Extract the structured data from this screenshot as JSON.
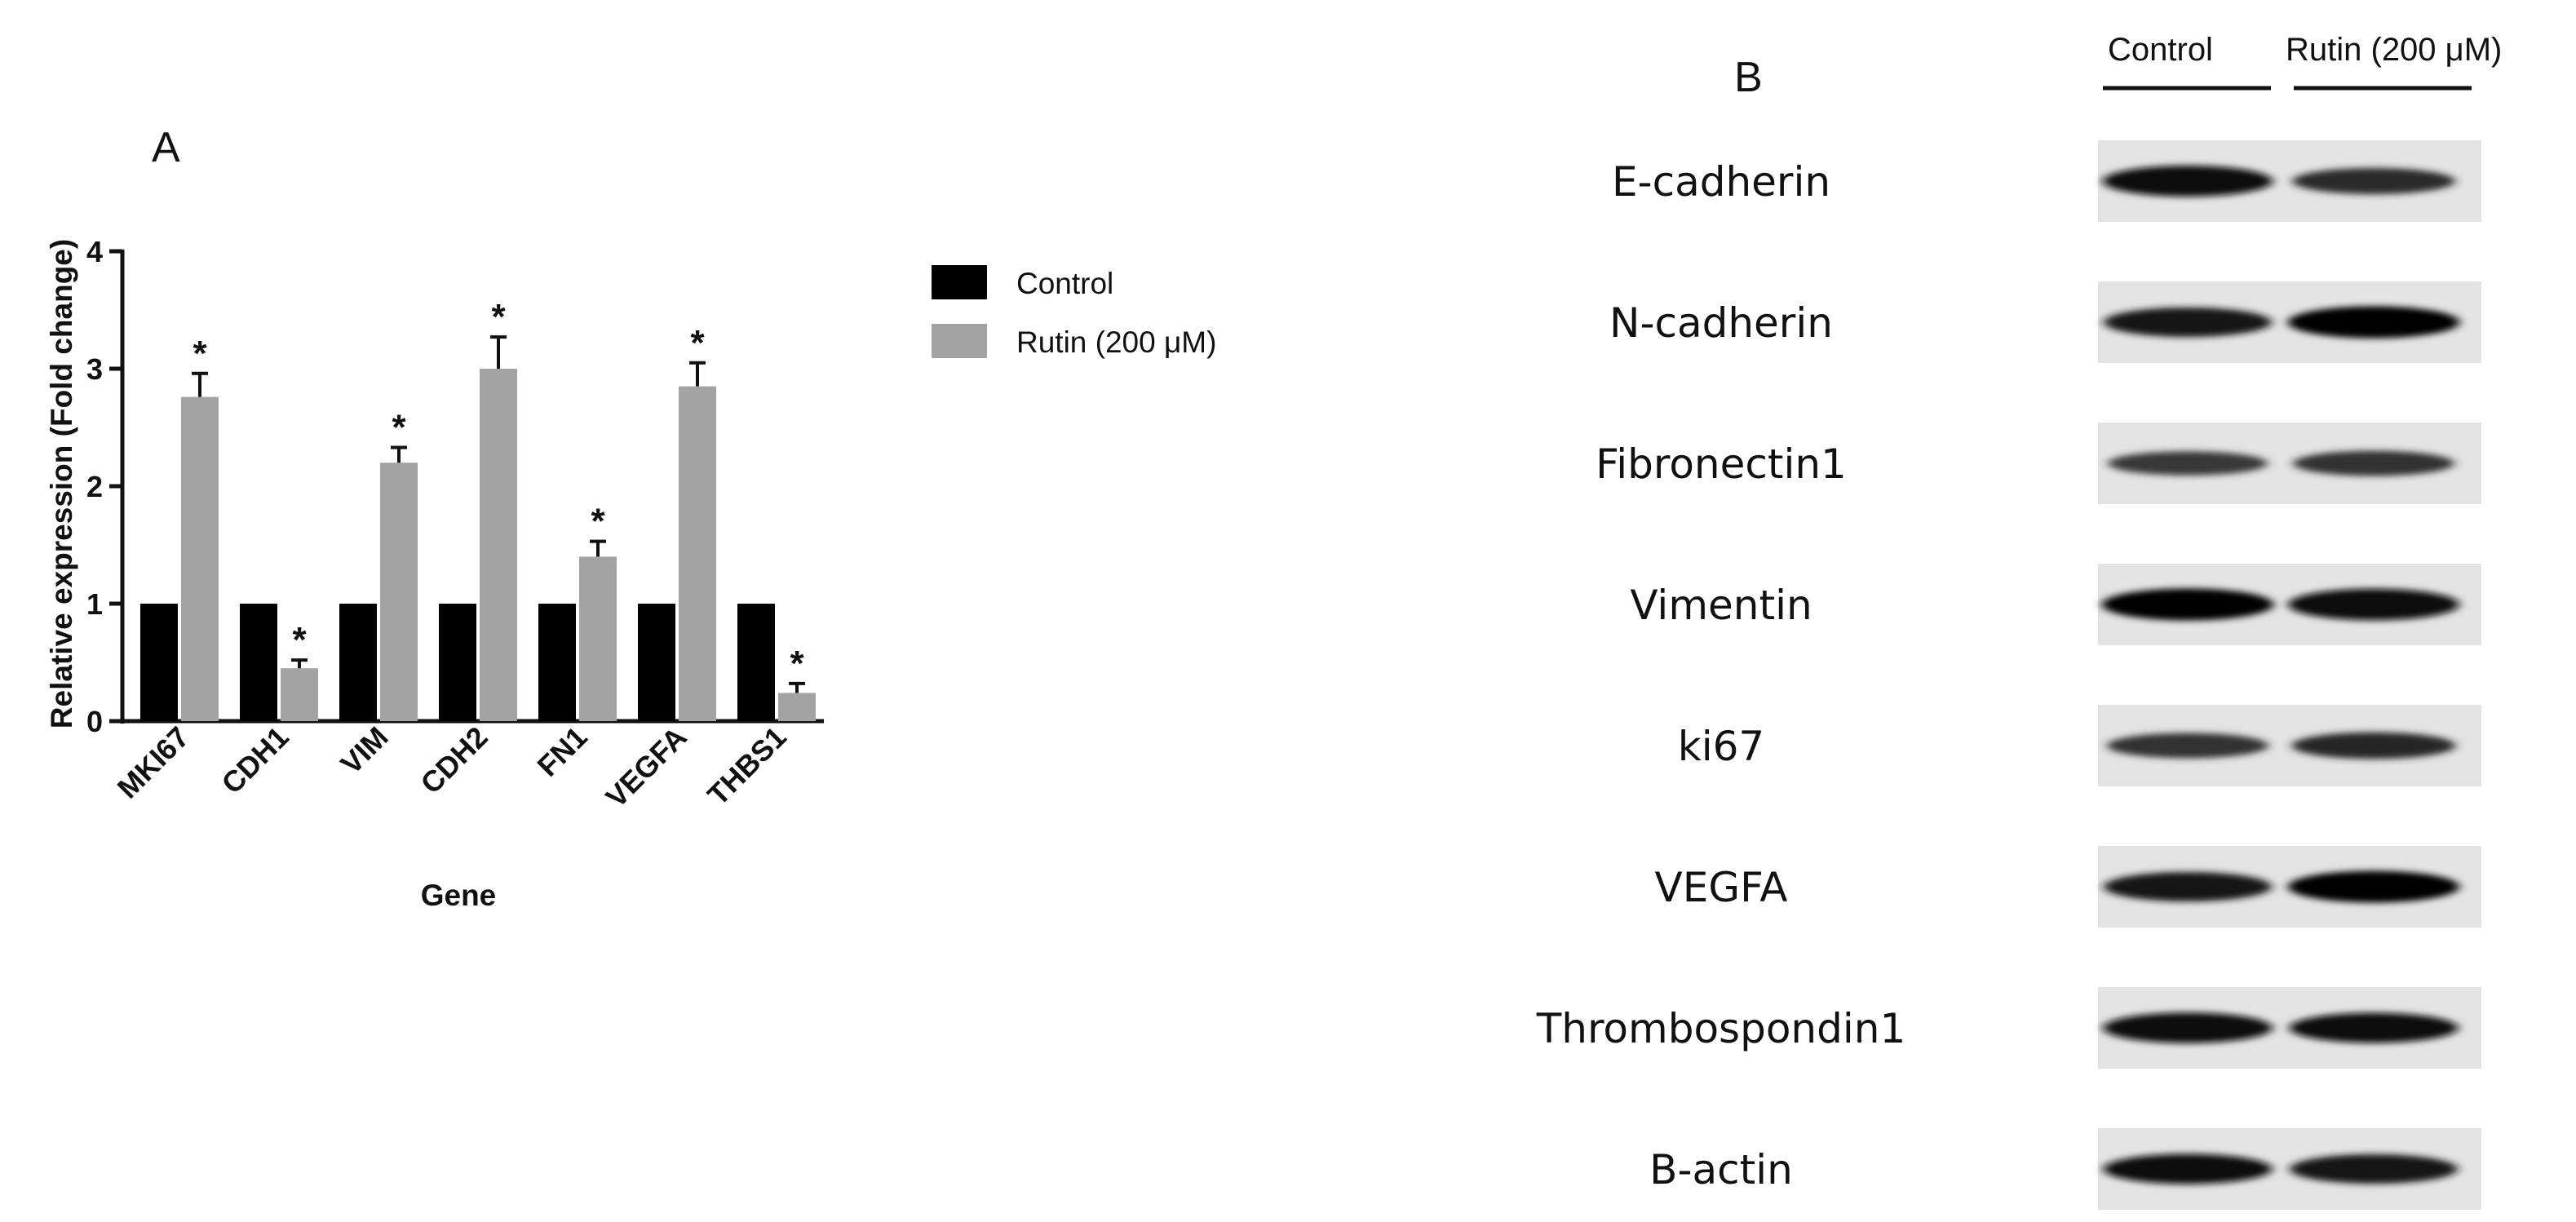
{
  "panel_a": {
    "letter": "A",
    "star": "*",
    "chart_data": {
      "type": "bar",
      "xlabel": "Gene",
      "ylabel": "Relative expression (Fold change)",
      "ylim": [
        0,
        4
      ],
      "yticks": [
        "0",
        "1",
        "2",
        "3",
        "4"
      ],
      "categories": [
        "MKI67",
        "CDH1",
        "VIM",
        "CDH2",
        "FN1",
        "VEGFA",
        "THBS1"
      ],
      "series": [
        {
          "name": "Control",
          "color": "#000000",
          "values": [
            1,
            1,
            1,
            1,
            1,
            1,
            1
          ],
          "errors": [
            0,
            0,
            0,
            0,
            0,
            0,
            0
          ],
          "significant": [
            false,
            false,
            false,
            false,
            false,
            false,
            false
          ]
        },
        {
          "name": "Rutin (200 μM)",
          "color": "#a3a3a3",
          "values": [
            2.76,
            0.45,
            2.2,
            3.0,
            1.4,
            2.85,
            0.24
          ],
          "errors": [
            0.2,
            0.07,
            0.13,
            0.27,
            0.13,
            0.2,
            0.08
          ],
          "significant": [
            true,
            true,
            true,
            true,
            true,
            true,
            true
          ]
        }
      ],
      "legend": "right",
      "grid": false
    }
  },
  "panel_b": {
    "letter": "B",
    "lanes": [
      "Control",
      "Rutin (200 μM)"
    ],
    "proteins": [
      "E-cadherin",
      "N-cadherin",
      "Fibronectin1",
      "Vimentin",
      "ki67",
      "VEGFA",
      "Thrombospondin1",
      "B-actin"
    ],
    "band_darkness": [
      [
        0.92,
        0.7
      ],
      [
        0.85,
        0.97
      ],
      [
        0.6,
        0.65
      ],
      [
        0.97,
        0.95
      ],
      [
        0.65,
        0.72
      ],
      [
        0.85,
        0.96
      ],
      [
        0.9,
        0.88
      ],
      [
        0.88,
        0.85
      ]
    ]
  }
}
